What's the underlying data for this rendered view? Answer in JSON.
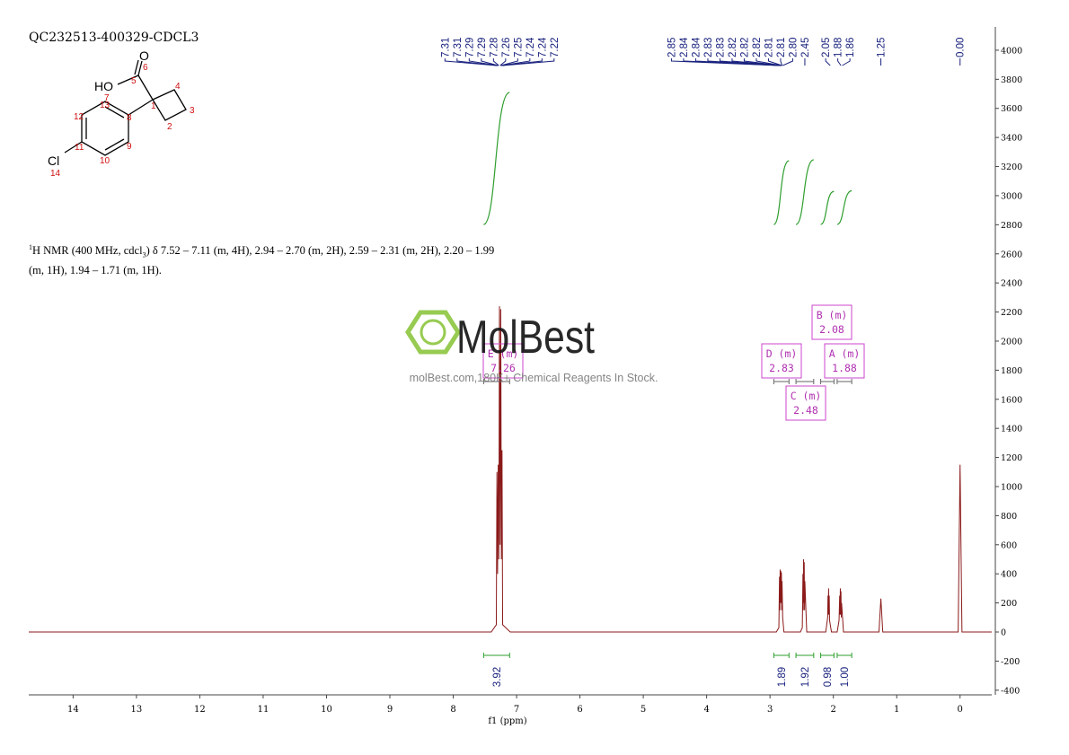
{
  "sample_id": "QC232513-400329-CDCL3",
  "structure": {
    "o_label": "O",
    "o_num": "6",
    "ho_label": "HO",
    "c5": "5",
    "c7": "7",
    "c13": "13",
    "c4": "4",
    "c1": "1",
    "c3": "3",
    "c12": "12",
    "c8": "8",
    "c2": "2",
    "c11": "11",
    "c9": "9",
    "c10": "10",
    "cl_label": "Cl",
    "cl_num": "14"
  },
  "description": {
    "sup": "1",
    "part1": "H NMR (400 MHz, cdcl",
    "sub": "3",
    "part2": ") δ 7.52 – 7.11 (m, 4H), 2.94 – 2.70 (m, 2H), 2.59 – 2.31 (m, 2H), 2.20 – 1.99",
    "line2": "(m, 1H), 1.94 – 1.71 (m, 1H)."
  },
  "watermark": {
    "brand": "MolBest",
    "tagline": "molBest.com,180K+ Chemical Reagents In Stock."
  },
  "chart_data": {
    "type": "line",
    "x_label": "f1 (ppm)",
    "xlim": [
      14.7,
      -0.5
    ],
    "xticks": [
      14,
      13,
      12,
      11,
      10,
      9,
      8,
      7,
      6,
      5,
      4,
      3,
      2,
      1,
      0
    ],
    "ylim": [
      -432,
      4160
    ],
    "yticks": [
      -400,
      -200,
      0,
      200,
      400,
      600,
      800,
      1000,
      1200,
      1400,
      1600,
      1800,
      2000,
      2200,
      2400,
      2600,
      2800,
      3000,
      3200,
      3400,
      3600,
      3800,
      4000
    ],
    "series": [
      {
        "color": "#8b1a1a",
        "x": [
          14.7,
          7.4,
          7.32,
          7.31,
          7.3,
          7.29,
          7.28,
          7.27,
          7.26,
          7.25,
          7.24,
          7.23,
          7.22,
          7.1,
          2.9,
          2.86,
          2.85,
          2.845,
          2.84,
          2.835,
          2.83,
          2.825,
          2.82,
          2.815,
          2.81,
          2.8,
          2.78,
          2.52,
          2.49,
          2.48,
          2.475,
          2.47,
          2.465,
          2.46,
          2.455,
          2.45,
          2.42,
          2.12,
          2.09,
          2.085,
          2.08,
          2.075,
          2.07,
          2.065,
          2.06,
          2.03,
          1.94,
          1.91,
          1.9,
          1.895,
          1.89,
          1.885,
          1.88,
          1.875,
          1.87,
          1.84,
          1.28,
          1.25,
          1.22,
          0.03,
          0,
          -0.03,
          -0.5
        ],
        "values": [
          0,
          0,
          50,
          1100,
          400,
          1150,
          500,
          2240,
          600,
          2220,
          500,
          1250,
          50,
          0,
          0,
          30,
          380,
          150,
          430,
          200,
          420,
          200,
          410,
          150,
          350,
          100,
          0,
          0,
          30,
          400,
          150,
          500,
          200,
          480,
          150,
          350,
          0,
          0,
          100,
          250,
          120,
          300,
          120,
          250,
          80,
          0,
          0,
          80,
          250,
          120,
          300,
          120,
          280,
          100,
          200,
          0,
          0,
          230,
          0,
          0,
          1150,
          0,
          0
        ]
      }
    ],
    "peak_labels": [
      7.31,
      7.31,
      7.29,
      7.29,
      7.28,
      7.26,
      7.25,
      7.24,
      7.24,
      7.22,
      2.85,
      2.84,
      2.84,
      2.83,
      2.83,
      2.82,
      2.82,
      2.82,
      2.81,
      2.81,
      {
        "value": 2.8,
        "label": "2.80"
      },
      2.45,
      2.05,
      1.88,
      1.86,
      1.25,
      {
        "value": 0,
        "label": "0.00"
      }
    ],
    "integrals": [
      {
        "from": 7.52,
        "to": 7.11,
        "value": 3.92
      },
      {
        "from": 2.94,
        "to": 2.7,
        "value": 1.89
      },
      {
        "from": 2.59,
        "to": 2.31,
        "value": 1.92
      },
      {
        "from": 2.2,
        "to": 1.99,
        "value": 0.98
      },
      {
        "from": 1.94,
        "to": 1.71,
        "value": {
          "value": 1,
          "label": "1.00"
        }
      }
    ],
    "multiplets": [
      {
        "name": "E (m)",
        "shift": 7.26
      },
      {
        "name": "D (m)",
        "shift": 2.83
      },
      {
        "name": "C (m)",
        "shift": 2.48
      },
      {
        "name": "B (m)",
        "shift": 2.08
      },
      {
        "name": "A (m)",
        "shift": 1.88
      }
    ]
  }
}
